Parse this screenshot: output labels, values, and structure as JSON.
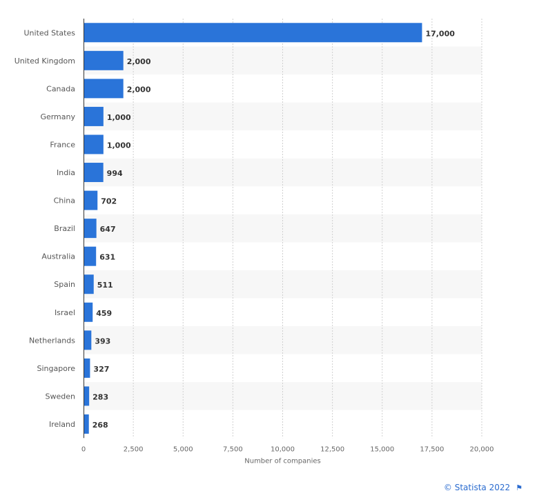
{
  "chart_data": {
    "type": "bar",
    "orientation": "horizontal",
    "categories": [
      "United States",
      "United Kingdom",
      "Canada",
      "Germany",
      "France",
      "India",
      "China",
      "Brazil",
      "Australia",
      "Spain",
      "Israel",
      "Netherlands",
      "Singapore",
      "Sweden",
      "Ireland"
    ],
    "values": [
      17000,
      2000,
      2000,
      1000,
      1000,
      994,
      702,
      647,
      631,
      511,
      459,
      393,
      327,
      283,
      268
    ],
    "value_labels": [
      "17,000",
      "2,000",
      "2,000",
      "1,000",
      "1,000",
      "994",
      "702",
      "647",
      "631",
      "511",
      "459",
      "393",
      "327",
      "283",
      "268"
    ],
    "xlabel": "Number of companies",
    "xlim": [
      0,
      20000
    ],
    "x_ticks": [
      0,
      2500,
      5000,
      7500,
      10000,
      12500,
      15000,
      17500,
      20000
    ],
    "x_tick_labels": [
      "0",
      "2,500",
      "5,000",
      "7,500",
      "10,000",
      "12,500",
      "15,000",
      "17,500",
      "20,000"
    ],
    "grid": "vertical dashed",
    "bar_color": "#2a74d9",
    "band_color": "#f7f7f7"
  },
  "credit": {
    "text": "© Statista 2022",
    "icon": "flag-icon",
    "color": "#2a6bcf"
  }
}
